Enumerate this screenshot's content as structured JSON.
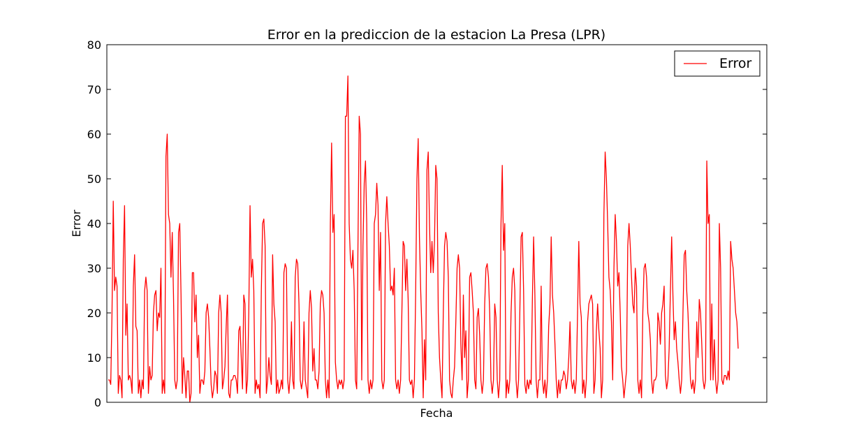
{
  "chart_data": {
    "type": "line",
    "title": "Error en la prediccion de la estacion La Presa (LPR)",
    "xlabel": "Fecha",
    "ylabel": "Error",
    "ylim": [
      0,
      80
    ],
    "yticks": [
      "0",
      "10",
      "20",
      "30",
      "40",
      "50",
      "60",
      "70",
      "80"
    ],
    "grid": false,
    "legend": "top-right",
    "series": [
      {
        "name": "Error",
        "color": "#ff0000",
        "values": [
          5,
          5,
          4,
          20,
          45,
          25,
          28,
          26,
          2,
          6,
          5,
          1,
          32,
          44,
          15,
          22,
          5,
          6,
          5,
          2,
          26,
          33,
          17,
          16,
          2,
          5,
          1,
          5,
          3,
          25,
          28,
          25,
          2,
          8,
          5,
          6,
          20,
          24,
          25,
          16,
          20,
          19,
          30,
          2,
          5,
          2,
          55,
          60,
          42,
          40,
          28,
          38,
          24,
          5,
          3,
          5,
          38,
          40,
          24,
          2,
          10,
          6,
          1,
          7,
          7,
          0,
          2,
          29,
          29,
          18,
          24,
          10,
          15,
          2,
          5,
          5,
          4,
          7,
          20,
          22,
          19,
          12,
          4,
          1,
          3,
          7,
          6,
          2,
          20,
          24,
          20,
          3,
          5,
          8,
          17,
          24,
          2,
          1,
          5,
          5,
          6,
          6,
          5,
          2,
          16,
          17,
          10,
          3,
          24,
          22,
          2,
          5,
          20,
          44,
          28,
          32,
          25,
          2,
          5,
          3,
          4,
          1,
          25,
          40,
          41,
          35,
          2,
          5,
          10,
          6,
          4,
          33,
          22,
          18,
          2,
          5,
          2,
          3,
          5,
          3,
          29,
          31,
          30,
          5,
          2,
          6,
          18,
          5,
          3,
          28,
          32,
          31,
          22,
          5,
          3,
          5,
          18,
          5,
          3,
          1,
          20,
          25,
          21,
          7,
          12,
          5,
          5,
          3,
          7,
          22,
          25,
          24,
          20,
          5,
          1,
          5,
          1,
          40,
          58,
          38,
          42,
          9,
          5,
          3,
          5,
          4,
          5,
          3,
          5,
          64,
          64,
          73,
          40,
          32,
          30,
          34,
          25,
          5,
          3,
          35,
          64,
          60,
          5,
          35,
          49,
          54,
          40,
          5,
          2,
          5,
          3,
          5,
          40,
          42,
          49,
          44,
          25,
          38,
          5,
          3,
          5,
          40,
          46,
          40,
          35,
          25,
          26,
          24,
          30,
          5,
          3,
          5,
          2,
          5,
          20,
          36,
          35,
          25,
          32,
          23,
          5,
          4,
          5,
          1,
          5,
          25,
          50,
          59,
          37,
          25,
          16,
          1,
          14,
          5,
          52,
          56,
          40,
          29,
          36,
          29,
          36,
          53,
          50,
          20,
          10,
          5,
          1,
          20,
          35,
          38,
          36,
          28,
          5,
          2,
          1,
          5,
          8,
          18,
          30,
          33,
          30,
          13,
          5,
          24,
          10,
          16,
          1,
          5,
          28,
          29,
          25,
          20,
          5,
          3,
          19,
          21,
          15,
          5,
          2,
          5,
          22,
          30,
          31,
          28,
          20,
          5,
          2,
          5,
          22,
          19,
          5,
          1,
          5,
          40,
          53,
          34,
          40,
          1,
          5,
          2,
          5,
          20,
          28,
          30,
          25,
          5,
          1,
          5,
          20,
          37,
          38,
          25,
          4,
          2,
          5,
          3,
          5,
          4,
          23,
          37,
          24,
          5,
          1,
          5,
          5,
          26,
          5,
          2,
          5,
          1,
          5,
          17,
          22,
          37,
          24,
          20,
          13,
          5,
          1,
          5,
          2,
          5,
          5,
          7,
          6,
          3,
          5,
          10,
          18,
          5,
          3,
          5,
          2,
          5,
          20,
          36,
          22,
          19,
          2,
          5,
          1,
          5,
          18,
          22,
          23,
          24,
          22,
          2,
          5,
          16,
          22,
          16,
          12,
          1,
          5,
          42,
          56,
          50,
          40,
          28,
          25,
          18,
          5,
          30,
          42,
          36,
          26,
          29,
          20,
          8,
          5,
          1,
          4,
          7,
          35,
          40,
          35,
          28,
          22,
          20,
          30,
          26,
          5,
          2,
          5,
          1,
          20,
          30,
          31,
          28,
          20,
          18,
          14,
          5,
          2,
          5,
          5,
          6,
          20,
          18,
          13,
          20,
          22,
          26,
          6,
          3,
          5,
          12,
          25,
          37,
          24,
          14,
          18,
          12,
          9,
          5,
          2,
          5,
          20,
          33,
          34,
          25,
          20,
          12,
          5,
          3,
          5,
          2,
          5,
          18,
          10,
          23,
          20,
          13,
          5,
          3,
          5,
          54,
          40,
          42,
          5,
          22,
          5,
          14,
          5,
          2,
          5,
          40,
          30,
          5,
          4,
          6,
          6,
          5,
          7,
          5,
          36,
          32,
          30,
          25,
          20,
          18,
          12
        ]
      }
    ]
  }
}
